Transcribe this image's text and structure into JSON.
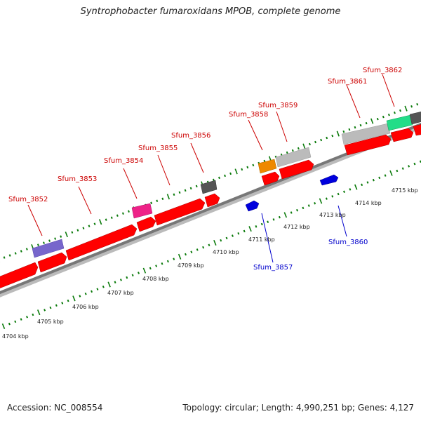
{
  "title": "Syntrophobacter fumaroxidans MPOB, complete genome",
  "footer": {
    "accession": "Accession: NC_008554",
    "summary": "Topology: circular; Length: 4,990,251 bp; Genes: 4,127"
  },
  "colors": {
    "cds": "#ff0000",
    "dna": "#777777",
    "ticks": "#0a7a0a",
    "forward_label": "#cc0000",
    "reverse_label": "#0000cc",
    "feature_purple": "#7766cc",
    "feature_magenta": "#ee2288",
    "feature_dark": "#555555",
    "feature_orange": "#ee8800",
    "feature_grey": "#bbbbbb",
    "feature_green": "#22dd88",
    "feature_blue": "#0000dd"
  },
  "kbp_labels": [
    "4704 kbp",
    "4705 kbp",
    "4706 kbp",
    "4707 kbp",
    "4708 kbp",
    "4709 kbp",
    "4710 kbp",
    "4711 kbp",
    "4712 kbp",
    "4713 kbp",
    "4714 kbp",
    "4715 kbp"
  ],
  "gene_labels": {
    "forward": [
      "Sfum_3852",
      "Sfum_3853",
      "Sfum_3854",
      "Sfum_3855",
      "Sfum_3856",
      "Sfum_3858",
      "Sfum_3859",
      "Sfum_3861",
      "Sfum_3862"
    ],
    "reverse": [
      "Sfum_3857",
      "Sfum_3860"
    ]
  }
}
